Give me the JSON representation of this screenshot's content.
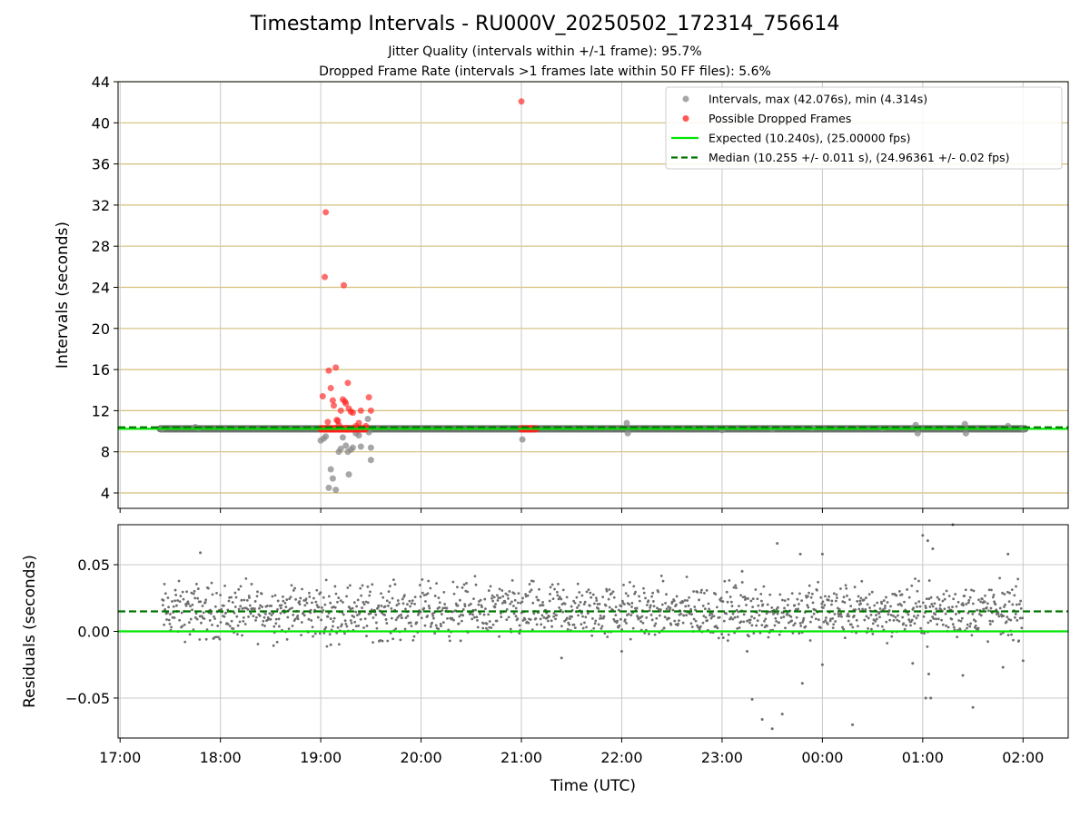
{
  "figure": {
    "title": "Timestamp Intervals - RU000V_20250502_172314_756614",
    "subtitle_1": "Jitter Quality (intervals within +/-1 frame): 95.7%",
    "subtitle_2": "Dropped Frame Rate (intervals >1 frames late within 50 FF files): 5.6%"
  },
  "colors": {
    "intervals": "#8a8a8a",
    "dropped": "#ff2020",
    "expected": "#00e600",
    "median": "#007500",
    "gold_grid": "#d4bf7a",
    "grid": "#c8c8c8",
    "residuals": "#6e6e6e"
  },
  "chart_data": [
    {
      "type": "scatter",
      "ylabel": "Intervals (seconds)",
      "ylim": [
        2.5,
        44
      ],
      "yticks": [
        "4",
        "8",
        "12",
        "16",
        "20",
        "24",
        "28",
        "32",
        "36",
        "40",
        "44"
      ],
      "gold_grid": true,
      "x_grid": true,
      "legend_position": "top-right",
      "series": [
        {
          "name": "Intervals, max (42.076s), min (4.314s)",
          "points": [
            [
              17.42,
              10.24
            ],
            [
              17.75,
              10.4
            ],
            [
              17.78,
              10.3
            ],
            [
              19.0,
              9.1
            ],
            [
              19.03,
              9.3
            ],
            [
              19.05,
              9.5
            ],
            [
              19.08,
              4.5
            ],
            [
              19.1,
              6.3
            ],
            [
              19.12,
              5.4
            ],
            [
              19.15,
              4.3
            ],
            [
              19.18,
              8.0
            ],
            [
              19.2,
              8.3
            ],
            [
              19.22,
              9.4
            ],
            [
              19.25,
              8.6
            ],
            [
              19.27,
              8.0
            ],
            [
              19.28,
              5.8
            ],
            [
              19.3,
              8.2
            ],
            [
              19.32,
              8.4
            ],
            [
              19.35,
              9.8
            ],
            [
              19.38,
              9.6
            ],
            [
              19.4,
              8.5
            ],
            [
              19.47,
              11.2
            ],
            [
              19.48,
              9.9
            ],
            [
              19.5,
              8.4
            ],
            [
              19.5,
              7.2
            ],
            [
              21.01,
              9.2
            ],
            [
              22.05,
              10.8
            ],
            [
              22.06,
              9.8
            ],
            [
              23.0,
              10.1
            ],
            [
              23.5,
              10.2
            ],
            [
              23.9,
              10.3
            ],
            [
              24.6,
              10.3
            ],
            [
              24.93,
              10.6
            ],
            [
              24.95,
              9.8
            ],
            [
              25.42,
              10.7
            ],
            [
              25.43,
              9.8
            ],
            [
              25.85,
              10.5
            ],
            [
              26.0,
              10.2
            ]
          ],
          "band": {
            "x_start": 17.4,
            "x_end": 26.02,
            "y": 10.24,
            "label": "dense run of intervals near 10.24 s"
          }
        },
        {
          "name": "Possible Dropped Frames",
          "points": [
            [
              19.02,
              13.4
            ],
            [
              19.04,
              25.0
            ],
            [
              19.05,
              31.3
            ],
            [
              19.07,
              10.9
            ],
            [
              19.08,
              15.9
            ],
            [
              19.1,
              14.2
            ],
            [
              19.12,
              13.0
            ],
            [
              19.13,
              12.5
            ],
            [
              19.15,
              16.2
            ],
            [
              19.16,
              11.1
            ],
            [
              19.17,
              11.0
            ],
            [
              19.18,
              10.6
            ],
            [
              19.2,
              12.0
            ],
            [
              19.22,
              13.1
            ],
            [
              19.23,
              24.2
            ],
            [
              19.24,
              12.9
            ],
            [
              19.25,
              12.7
            ],
            [
              19.27,
              14.7
            ],
            [
              19.28,
              12.2
            ],
            [
              19.3,
              11.9
            ],
            [
              19.32,
              11.8
            ],
            [
              19.35,
              10.5
            ],
            [
              19.38,
              10.8
            ],
            [
              19.4,
              12.0
            ],
            [
              19.45,
              10.5
            ],
            [
              19.48,
              13.3
            ],
            [
              19.5,
              12.0
            ],
            [
              21.0,
              42.08
            ]
          ],
          "band": {
            "x_start": 19.0,
            "x_end": 19.45,
            "y": 10.24,
            "label": "dropped-frame run"
          },
          "band2": {
            "x_start": 21.0,
            "x_end": 21.15,
            "y": 10.24,
            "label": "dropped-frame run"
          }
        },
        {
          "name": "Expected (10.240s), (25.00000 fps)",
          "value": 10.24
        },
        {
          "name": "Median (10.255 +/- 0.011 s), (24.96361 +/- 0.02 fps)",
          "value": 10.255
        }
      ]
    },
    {
      "type": "scatter",
      "xlabel": "Time (UTC)",
      "ylabel": "Residuals (seconds)",
      "ylim": [
        -0.08,
        0.08
      ],
      "yticks": [
        "0.05",
        "0.00",
        "−0.05"
      ],
      "xticks": [
        "17:00",
        "18:00",
        "19:00",
        "20:00",
        "21:00",
        "22:00",
        "23:00",
        "00:00",
        "01:00",
        "02:00"
      ],
      "x_range_hours": [
        16.98,
        26.45
      ],
      "grid": true,
      "series": [
        {
          "name": "Expected",
          "value": 0.0
        },
        {
          "name": "Median",
          "value": 0.015
        },
        {
          "name": "Residuals",
          "generated_band": {
            "x_start": 17.42,
            "x_end": 26.0,
            "center": 0.015,
            "spread": 0.012,
            "count": 1500
          },
          "notable_points": [
            [
              17.8,
              0.059
            ],
            [
              19.1,
              -0.01
            ],
            [
              21.4,
              -0.02
            ],
            [
              22.0,
              -0.015
            ],
            [
              23.2,
              0.045
            ],
            [
              23.25,
              -0.015
            ],
            [
              23.3,
              -0.051
            ],
            [
              23.4,
              -0.066
            ],
            [
              23.5,
              -0.073
            ],
            [
              23.55,
              0.066
            ],
            [
              23.6,
              -0.062
            ],
            [
              23.78,
              0.058
            ],
            [
              23.8,
              -0.039
            ],
            [
              24.0,
              0.058
            ],
            [
              24.0,
              -0.025
            ],
            [
              24.3,
              -0.07
            ],
            [
              24.9,
              -0.024
            ],
            [
              25.0,
              0.072
            ],
            [
              25.03,
              -0.05
            ],
            [
              25.05,
              0.068
            ],
            [
              25.06,
              -0.032
            ],
            [
              25.08,
              -0.05
            ],
            [
              25.1,
              0.062
            ],
            [
              25.4,
              -0.033
            ],
            [
              25.5,
              -0.057
            ],
            [
              25.8,
              -0.027
            ],
            [
              25.85,
              0.058
            ],
            [
              26.0,
              -0.022
            ],
            [
              25.3,
              0.08
            ]
          ]
        }
      ]
    }
  ]
}
